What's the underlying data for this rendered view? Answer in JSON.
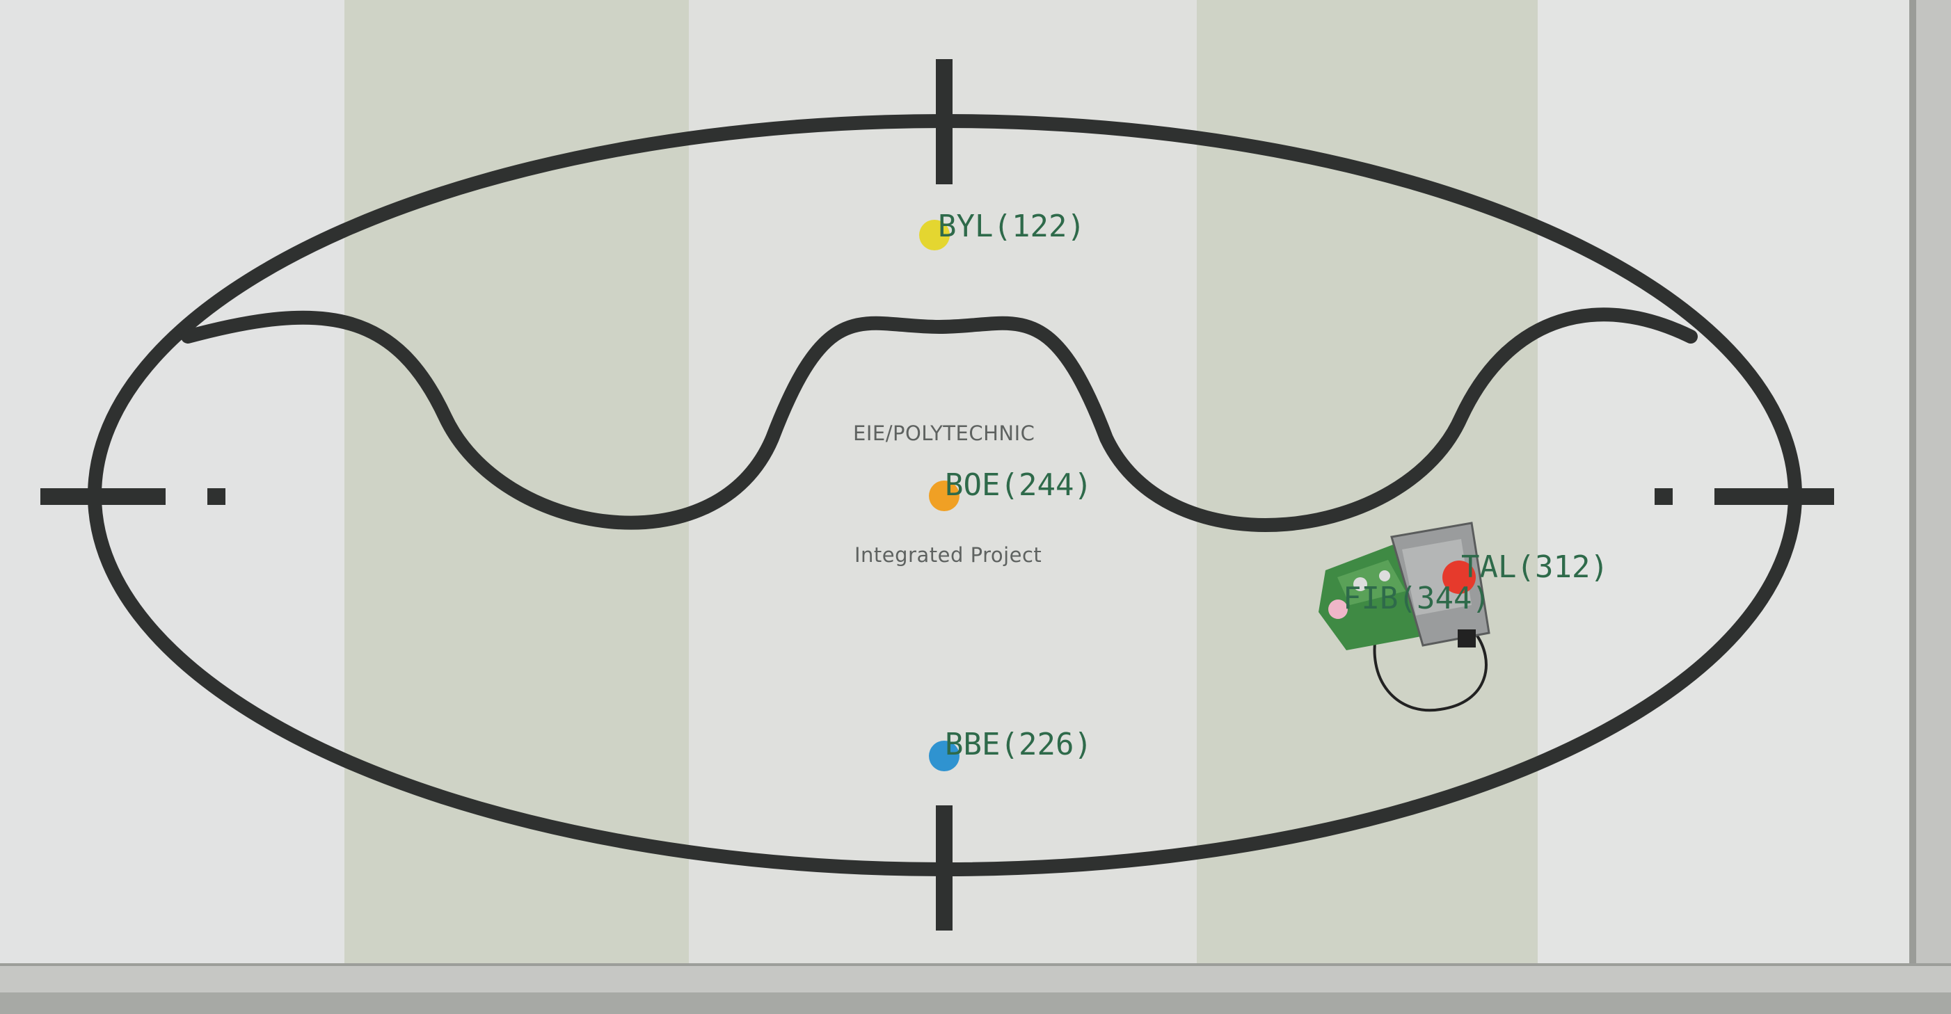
{
  "board_text": {
    "line1": "EIE/POLYTECHNIC",
    "line2": "Integrated Project"
  },
  "detections": [
    {
      "key": "byl",
      "label": "BYL(122)",
      "color": "#e4d630"
    },
    {
      "key": "boe",
      "label": "BOE(244)",
      "color": "#f0a024"
    },
    {
      "key": "bbe",
      "label": "BBE(226)",
      "color": "#2f93d0"
    },
    {
      "key": "tal",
      "label": "TAL(312)",
      "color": "#e63a2c"
    },
    {
      "key": "fib",
      "label": "FIB(344)",
      "color": "#efb6c8"
    }
  ],
  "colors": {
    "track": "#2f3130",
    "board_light": "#dfe0dd",
    "board_stripe": "#cfd3c6",
    "label_text": "#2e6a4a",
    "pcb_green": "#3f8a44"
  }
}
